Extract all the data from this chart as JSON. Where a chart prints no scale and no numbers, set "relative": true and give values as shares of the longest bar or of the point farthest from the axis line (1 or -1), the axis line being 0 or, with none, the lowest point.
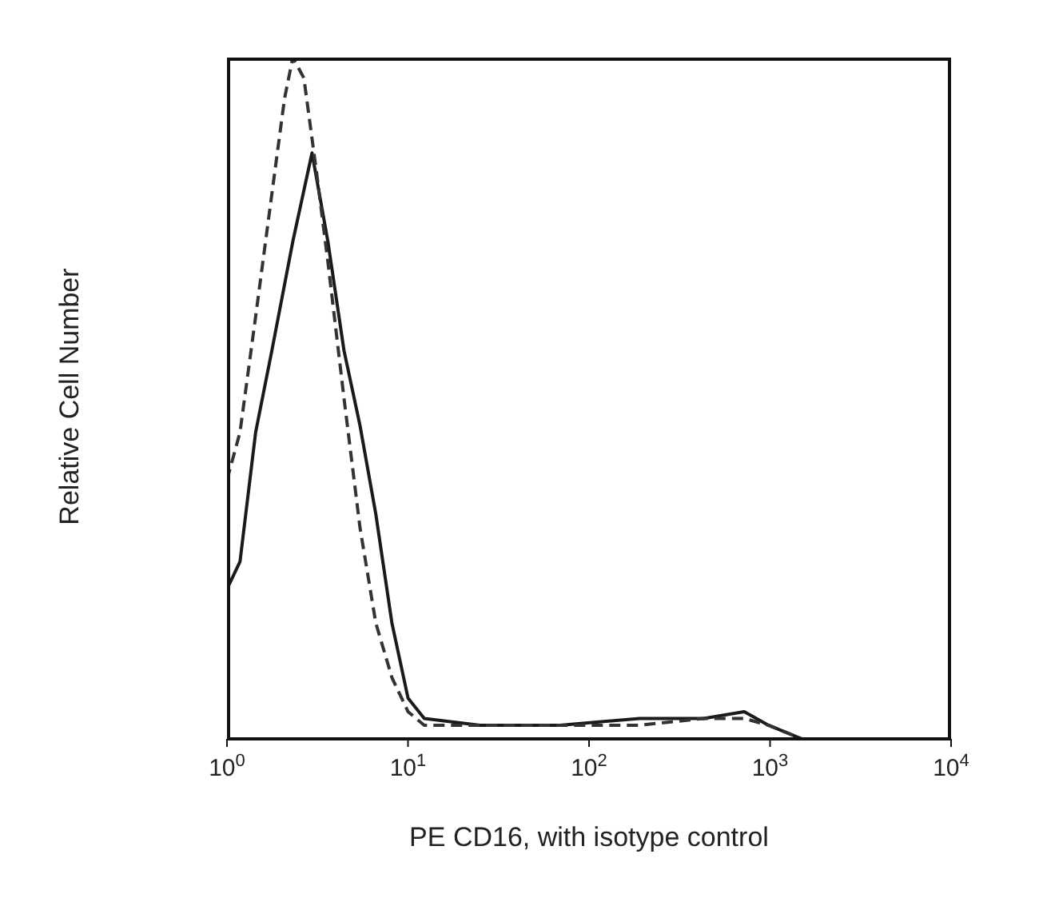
{
  "chart_data": {
    "type": "line",
    "relative": true,
    "xlabel": "PE CD16, with isotype control",
    "ylabel": "Relative Cell Number",
    "log": "x",
    "xlim": [
      1,
      10000
    ],
    "xticks": [
      {
        "value": 1,
        "label": "10$^{0}$"
      },
      {
        "value": 10,
        "label": "10$^{1}$"
      },
      {
        "value": 100,
        "label": "10$^{2}$"
      },
      {
        "value": 1000,
        "label": "10$^{3}$"
      },
      {
        "value": 10000,
        "label": "10$^{4}$"
      }
    ],
    "grid": false,
    "legend": false,
    "marker": "none",
    "series": [
      {
        "color": "#1a1a1a",
        "line_style": "solid",
        "x": [
          1,
          1.18,
          1.44,
          1.77,
          2.31,
          2.95,
          3.61,
          4.43,
          5.43,
          6.64,
          8.15,
          10,
          12.3,
          25,
          69,
          190,
          430,
          720,
          980,
          1500
        ],
        "values": [
          0.22,
          0.26,
          0.45,
          0.57,
          0.73,
          0.86,
          0.73,
          0.57,
          0.46,
          0.33,
          0.17,
          0.06,
          0.03,
          0.02,
          0.02,
          0.03,
          0.03,
          0.04,
          0.02,
          0
        ]
      },
      {
        "color": "#333333",
        "line_style": "dashed",
        "x": [
          1,
          1.18,
          1.44,
          1.77,
          2.08,
          2.31,
          2.66,
          3.13,
          3.61,
          4.43,
          5.43,
          6.64,
          8.15,
          10,
          12.3,
          25,
          69,
          190,
          430,
          720,
          980,
          1500
        ],
        "values": [
          0.38,
          0.45,
          0.62,
          0.8,
          0.94,
          1,
          0.97,
          0.83,
          0.7,
          0.5,
          0.31,
          0.17,
          0.09,
          0.04,
          0.02,
          0.02,
          0.02,
          0.02,
          0.03,
          0.03,
          0.02,
          0
        ]
      }
    ]
  }
}
